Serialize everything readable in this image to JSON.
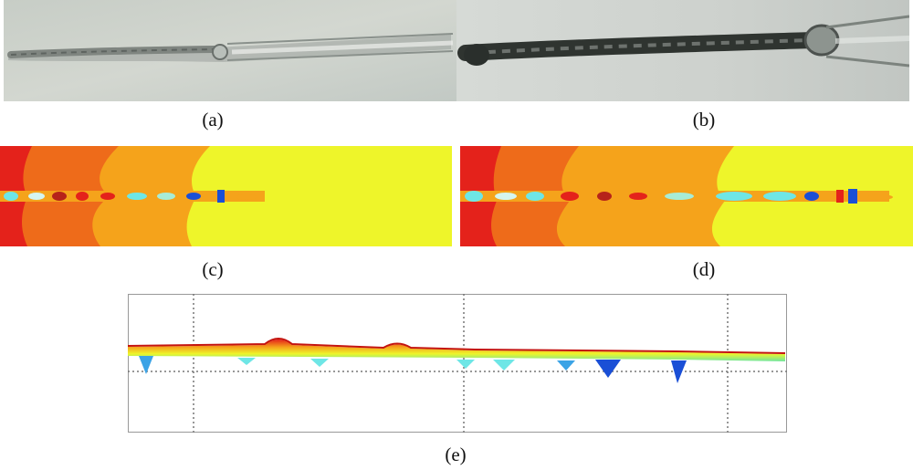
{
  "figure": {
    "labels": {
      "a": "(a)",
      "b": "(b)",
      "c": "(c)",
      "d": "(d)",
      "e": "(e)"
    }
  },
  "colors": {
    "photo_bg": "#c9cfc9",
    "heat_red": "#e4221b",
    "heat_orange": "#f5a31b",
    "heat_yellow": "#eef52a",
    "heat_cyan": "#6ee6e6",
    "heat_blue": "#1a4fd6",
    "grid": "#888888"
  }
}
